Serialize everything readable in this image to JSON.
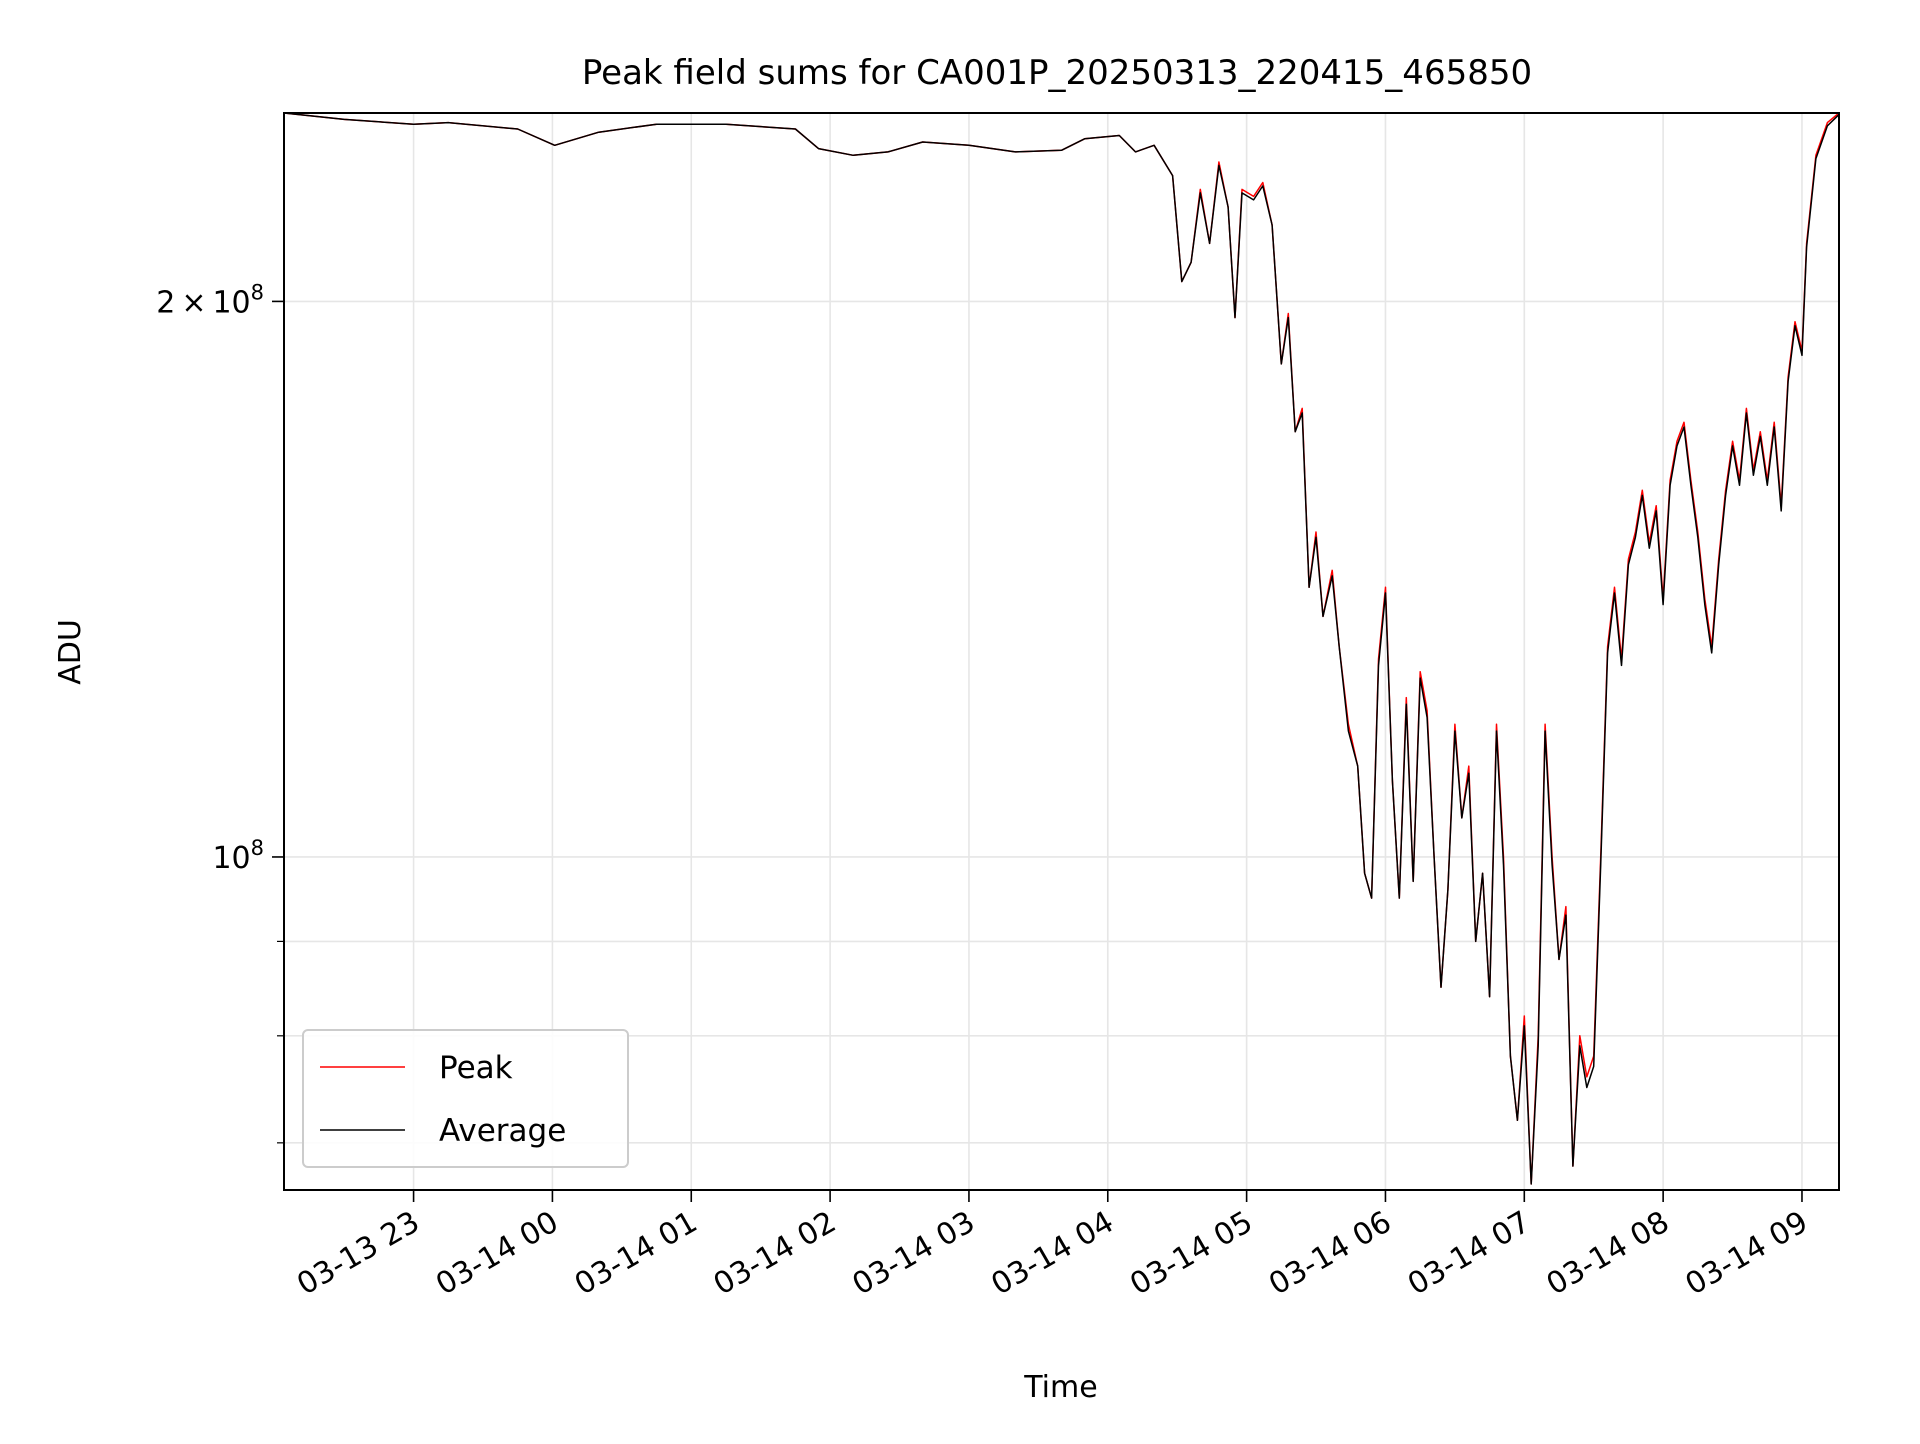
{
  "chart_data": {
    "type": "line",
    "title": "Peak field sums for CA001P_20250313_220415_465850",
    "xlabel": "Time",
    "ylabel": "ADU",
    "y_scale": "log",
    "xlim": [
      "2025-03-13T22:04",
      "2025-03-14T09:16"
    ],
    "ylim": [
      66000000,
      253000000
    ],
    "x_ticks": [
      "03-13 23",
      "03-14 00",
      "03-14 01",
      "03-14 02",
      "03-14 03",
      "03-14 04",
      "03-14 05",
      "03-14 06",
      "03-14 07",
      "03-14 08",
      "03-14 09"
    ],
    "y_major_ticks": [
      {
        "value": 100000000,
        "mantissa": "",
        "exponent": "8"
      },
      {
        "value": 200000000,
        "mantissa": "2",
        "exponent": "8"
      }
    ],
    "y_minor_ticks": [
      70000000,
      80000000,
      90000000
    ],
    "grid": true,
    "legend": {
      "placement": "lower-left",
      "entries": [
        "Peak",
        "Average"
      ]
    },
    "series": [
      {
        "name": "Peak",
        "color": "#ff0000",
        "points": [
          [
            "2025-03-13T22:04",
            253000000
          ],
          [
            "2025-03-13T22:30",
            251000000
          ],
          [
            "2025-03-13T23:00",
            249500000
          ],
          [
            "2025-03-13T23:15",
            250000000
          ],
          [
            "2025-03-13T23:45",
            248000000
          ],
          [
            "2025-03-14T00:01",
            243000000
          ],
          [
            "2025-03-14T00:20",
            247000000
          ],
          [
            "2025-03-14T00:45",
            249500000
          ],
          [
            "2025-03-14T01:15",
            249500000
          ],
          [
            "2025-03-14T01:45",
            248000000
          ],
          [
            "2025-03-14T01:55",
            242000000
          ],
          [
            "2025-03-14T02:10",
            240000000
          ],
          [
            "2025-03-14T02:25",
            241000000
          ],
          [
            "2025-03-14T02:40",
            244000000
          ],
          [
            "2025-03-14T03:00",
            243000000
          ],
          [
            "2025-03-14T03:20",
            241000000
          ],
          [
            "2025-03-14T03:40",
            241500000
          ],
          [
            "2025-03-14T03:50",
            245000000
          ],
          [
            "2025-03-14T04:05",
            246000000
          ],
          [
            "2025-03-14T04:12",
            241000000
          ],
          [
            "2025-03-14T04:20",
            243000000
          ],
          [
            "2025-03-14T04:28",
            234000000
          ],
          [
            "2025-03-14T04:32",
            205000000
          ],
          [
            "2025-03-14T04:36",
            210000000
          ],
          [
            "2025-03-14T04:40",
            230000000
          ],
          [
            "2025-03-14T04:44",
            215000000
          ],
          [
            "2025-03-14T04:48",
            238000000
          ],
          [
            "2025-03-14T04:52",
            225000000
          ],
          [
            "2025-03-14T04:55",
            196000000
          ],
          [
            "2025-03-14T04:58",
            230000000
          ],
          [
            "2025-03-14T05:03",
            228000000
          ],
          [
            "2025-03-14T05:07",
            232000000
          ],
          [
            "2025-03-14T05:11",
            220000000
          ],
          [
            "2025-03-14T05:15",
            185000000
          ],
          [
            "2025-03-14T05:18",
            197000000
          ],
          [
            "2025-03-14T05:21",
            170000000
          ],
          [
            "2025-03-14T05:24",
            175000000
          ],
          [
            "2025-03-14T05:27",
            140000000
          ],
          [
            "2025-03-14T05:30",
            150000000
          ],
          [
            "2025-03-14T05:33",
            135000000
          ],
          [
            "2025-03-14T05:37",
            143000000
          ],
          [
            "2025-03-14T05:40",
            130000000
          ],
          [
            "2025-03-14T05:44",
            118000000
          ],
          [
            "2025-03-14T05:48",
            112000000
          ],
          [
            "2025-03-14T05:51",
            98000000
          ],
          [
            "2025-03-14T05:54",
            95000000
          ],
          [
            "2025-03-14T05:57",
            128000000
          ],
          [
            "2025-03-14T06:00",
            140000000
          ],
          [
            "2025-03-14T06:03",
            110000000
          ],
          [
            "2025-03-14T06:06",
            95000000
          ],
          [
            "2025-03-14T06:09",
            122000000
          ],
          [
            "2025-03-14T06:12",
            97000000
          ],
          [
            "2025-03-14T06:15",
            126000000
          ],
          [
            "2025-03-14T06:18",
            120000000
          ],
          [
            "2025-03-14T06:21",
            100000000
          ],
          [
            "2025-03-14T06:24",
            85000000
          ],
          [
            "2025-03-14T06:27",
            96000000
          ],
          [
            "2025-03-14T06:30",
            118000000
          ],
          [
            "2025-03-14T06:33",
            105000000
          ],
          [
            "2025-03-14T06:36",
            112000000
          ],
          [
            "2025-03-14T06:39",
            90000000
          ],
          [
            "2025-03-14T06:42",
            98000000
          ],
          [
            "2025-03-14T06:45",
            84000000
          ],
          [
            "2025-03-14T06:48",
            118000000
          ],
          [
            "2025-03-14T06:51",
            100000000
          ],
          [
            "2025-03-14T06:54",
            78000000
          ],
          [
            "2025-03-14T06:57",
            72000000
          ],
          [
            "2025-03-14T07:00",
            82000000
          ],
          [
            "2025-03-14T07:03",
            66500000
          ],
          [
            "2025-03-14T07:06",
            80000000
          ],
          [
            "2025-03-14T07:09",
            118000000
          ],
          [
            "2025-03-14T07:12",
            100000000
          ],
          [
            "2025-03-14T07:15",
            88000000
          ],
          [
            "2025-03-14T07:18",
            94000000
          ],
          [
            "2025-03-14T07:21",
            68000000
          ],
          [
            "2025-03-14T07:24",
            80000000
          ],
          [
            "2025-03-14T07:27",
            76000000
          ],
          [
            "2025-03-14T07:30",
            78000000
          ],
          [
            "2025-03-14T07:33",
            100000000
          ],
          [
            "2025-03-14T07:36",
            130000000
          ],
          [
            "2025-03-14T07:39",
            140000000
          ],
          [
            "2025-03-14T07:42",
            128000000
          ],
          [
            "2025-03-14T07:45",
            145000000
          ],
          [
            "2025-03-14T07:48",
            150000000
          ],
          [
            "2025-03-14T07:51",
            158000000
          ],
          [
            "2025-03-14T07:54",
            148000000
          ],
          [
            "2025-03-14T07:57",
            155000000
          ],
          [
            "2025-03-14T08:00",
            138000000
          ],
          [
            "2025-03-14T08:03",
            160000000
          ],
          [
            "2025-03-14T08:06",
            168000000
          ],
          [
            "2025-03-14T08:09",
            172000000
          ],
          [
            "2025-03-14T08:12",
            160000000
          ],
          [
            "2025-03-14T08:15",
            150000000
          ],
          [
            "2025-03-14T08:18",
            138000000
          ],
          [
            "2025-03-14T08:21",
            130000000
          ],
          [
            "2025-03-14T08:24",
            145000000
          ],
          [
            "2025-03-14T08:27",
            158000000
          ],
          [
            "2025-03-14T08:30",
            168000000
          ],
          [
            "2025-03-14T08:33",
            160000000
          ],
          [
            "2025-03-14T08:36",
            175000000
          ],
          [
            "2025-03-14T08:39",
            162000000
          ],
          [
            "2025-03-14T08:42",
            170000000
          ],
          [
            "2025-03-14T08:45",
            160000000
          ],
          [
            "2025-03-14T08:48",
            172000000
          ],
          [
            "2025-03-14T08:51",
            155000000
          ],
          [
            "2025-03-14T08:54",
            182000000
          ],
          [
            "2025-03-14T08:57",
            195000000
          ],
          [
            "2025-03-14T09:00",
            188000000
          ],
          [
            "2025-03-14T09:02",
            215000000
          ],
          [
            "2025-03-14T09:06",
            240000000
          ],
          [
            "2025-03-14T09:11",
            250000000
          ],
          [
            "2025-03-14T09:16",
            253000000
          ]
        ]
      },
      {
        "name": "Average",
        "color": "#000000",
        "points": [
          [
            "2025-03-13T22:04",
            253000000
          ],
          [
            "2025-03-13T22:30",
            251000000
          ],
          [
            "2025-03-13T23:00",
            249500000
          ],
          [
            "2025-03-13T23:15",
            250000000
          ],
          [
            "2025-03-13T23:45",
            248000000
          ],
          [
            "2025-03-14T00:01",
            243000000
          ],
          [
            "2025-03-14T00:20",
            247000000
          ],
          [
            "2025-03-14T00:45",
            249500000
          ],
          [
            "2025-03-14T01:15",
            249500000
          ],
          [
            "2025-03-14T01:45",
            248000000
          ],
          [
            "2025-03-14T01:55",
            242000000
          ],
          [
            "2025-03-14T02:10",
            240000000
          ],
          [
            "2025-03-14T02:25",
            241000000
          ],
          [
            "2025-03-14T02:40",
            244000000
          ],
          [
            "2025-03-14T03:00",
            243000000
          ],
          [
            "2025-03-14T03:20",
            241000000
          ],
          [
            "2025-03-14T03:40",
            241500000
          ],
          [
            "2025-03-14T03:50",
            245000000
          ],
          [
            "2025-03-14T04:05",
            246000000
          ],
          [
            "2025-03-14T04:12",
            241000000
          ],
          [
            "2025-03-14T04:20",
            243000000
          ],
          [
            "2025-03-14T04:28",
            234000000
          ],
          [
            "2025-03-14T04:32",
            205000000
          ],
          [
            "2025-03-14T04:36",
            210000000
          ],
          [
            "2025-03-14T04:40",
            229000000
          ],
          [
            "2025-03-14T04:44",
            215000000
          ],
          [
            "2025-03-14T04:48",
            237000000
          ],
          [
            "2025-03-14T04:52",
            225000000
          ],
          [
            "2025-03-14T04:55",
            196000000
          ],
          [
            "2025-03-14T04:58",
            229000000
          ],
          [
            "2025-03-14T05:03",
            227000000
          ],
          [
            "2025-03-14T05:07",
            231000000
          ],
          [
            "2025-03-14T05:11",
            220000000
          ],
          [
            "2025-03-14T05:15",
            185000000
          ],
          [
            "2025-03-14T05:18",
            196000000
          ],
          [
            "2025-03-14T05:21",
            170000000
          ],
          [
            "2025-03-14T05:24",
            174000000
          ],
          [
            "2025-03-14T05:27",
            140000000
          ],
          [
            "2025-03-14T05:30",
            149000000
          ],
          [
            "2025-03-14T05:33",
            135000000
          ],
          [
            "2025-03-14T05:37",
            142000000
          ],
          [
            "2025-03-14T05:40",
            130000000
          ],
          [
            "2025-03-14T05:44",
            117000000
          ],
          [
            "2025-03-14T05:48",
            112000000
          ],
          [
            "2025-03-14T05:51",
            98000000
          ],
          [
            "2025-03-14T05:54",
            95000000
          ],
          [
            "2025-03-14T05:57",
            127000000
          ],
          [
            "2025-03-14T06:00",
            139000000
          ],
          [
            "2025-03-14T06:03",
            110000000
          ],
          [
            "2025-03-14T06:06",
            95000000
          ],
          [
            "2025-03-14T06:09",
            121000000
          ],
          [
            "2025-03-14T06:12",
            97000000
          ],
          [
            "2025-03-14T06:15",
            125000000
          ],
          [
            "2025-03-14T06:18",
            119000000
          ],
          [
            "2025-03-14T06:21",
            100000000
          ],
          [
            "2025-03-14T06:24",
            85000000
          ],
          [
            "2025-03-14T06:27",
            96000000
          ],
          [
            "2025-03-14T06:30",
            117000000
          ],
          [
            "2025-03-14T06:33",
            105000000
          ],
          [
            "2025-03-14T06:36",
            111000000
          ],
          [
            "2025-03-14T06:39",
            90000000
          ],
          [
            "2025-03-14T06:42",
            98000000
          ],
          [
            "2025-03-14T06:45",
            84000000
          ],
          [
            "2025-03-14T06:48",
            117000000
          ],
          [
            "2025-03-14T06:51",
            99000000
          ],
          [
            "2025-03-14T06:54",
            78000000
          ],
          [
            "2025-03-14T06:57",
            72000000
          ],
          [
            "2025-03-14T07:00",
            81000000
          ],
          [
            "2025-03-14T07:03",
            66500000
          ],
          [
            "2025-03-14T07:06",
            79000000
          ],
          [
            "2025-03-14T07:09",
            117000000
          ],
          [
            "2025-03-14T07:12",
            99000000
          ],
          [
            "2025-03-14T07:15",
            88000000
          ],
          [
            "2025-03-14T07:18",
            93000000
          ],
          [
            "2025-03-14T07:21",
            68000000
          ],
          [
            "2025-03-14T07:24",
            79000000
          ],
          [
            "2025-03-14T07:27",
            75000000
          ],
          [
            "2025-03-14T07:30",
            77000000
          ],
          [
            "2025-03-14T07:33",
            99000000
          ],
          [
            "2025-03-14T07:36",
            129000000
          ],
          [
            "2025-03-14T07:39",
            139000000
          ],
          [
            "2025-03-14T07:42",
            127000000
          ],
          [
            "2025-03-14T07:45",
            144000000
          ],
          [
            "2025-03-14T07:48",
            149000000
          ],
          [
            "2025-03-14T07:51",
            157000000
          ],
          [
            "2025-03-14T07:54",
            147000000
          ],
          [
            "2025-03-14T07:57",
            154000000
          ],
          [
            "2025-03-14T08:00",
            137000000
          ],
          [
            "2025-03-14T08:03",
            159000000
          ],
          [
            "2025-03-14T08:06",
            167000000
          ],
          [
            "2025-03-14T08:09",
            171000000
          ],
          [
            "2025-03-14T08:12",
            159000000
          ],
          [
            "2025-03-14T08:15",
            149000000
          ],
          [
            "2025-03-14T08:18",
            137000000
          ],
          [
            "2025-03-14T08:21",
            129000000
          ],
          [
            "2025-03-14T08:24",
            144000000
          ],
          [
            "2025-03-14T08:27",
            157000000
          ],
          [
            "2025-03-14T08:30",
            167000000
          ],
          [
            "2025-03-14T08:33",
            159000000
          ],
          [
            "2025-03-14T08:36",
            174000000
          ],
          [
            "2025-03-14T08:39",
            161000000
          ],
          [
            "2025-03-14T08:42",
            169000000
          ],
          [
            "2025-03-14T08:45",
            159000000
          ],
          [
            "2025-03-14T08:48",
            171000000
          ],
          [
            "2025-03-14T08:51",
            154000000
          ],
          [
            "2025-03-14T08:54",
            181000000
          ],
          [
            "2025-03-14T08:57",
            194000000
          ],
          [
            "2025-03-14T09:00",
            187000000
          ],
          [
            "2025-03-14T09:02",
            214000000
          ],
          [
            "2025-03-14T09:06",
            239000000
          ],
          [
            "2025-03-14T09:11",
            249000000
          ],
          [
            "2025-03-14T09:16",
            252500000
          ]
        ]
      }
    ]
  }
}
